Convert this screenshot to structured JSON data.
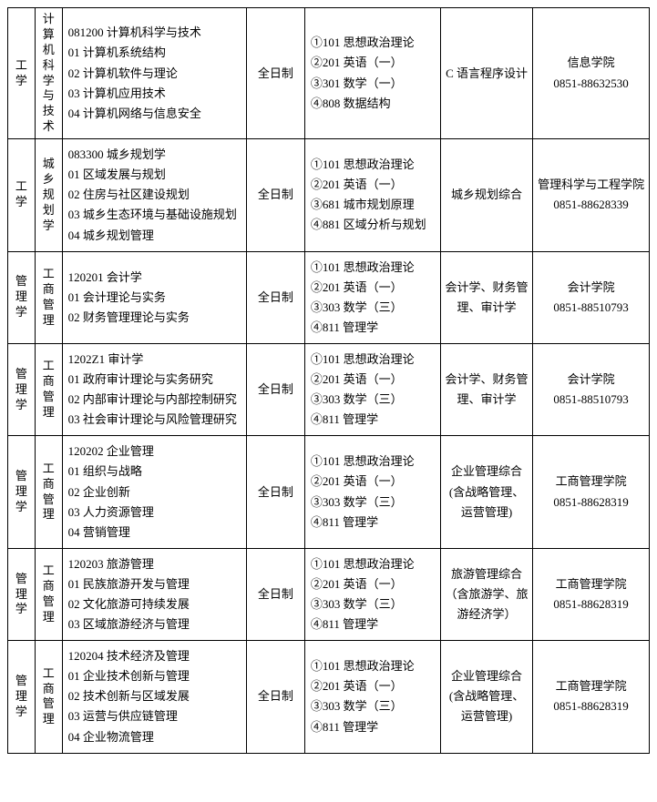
{
  "rows": [
    {
      "discipline": "工学",
      "category": "计算机科学与技术",
      "majors": "081200 计算机科学与技术\n01 计算机系统结构\n02 计算机软件与理论\n03 计算机应用技术\n04 计算机网络与信息安全",
      "mode": "全日制",
      "exams": "①101 思想政治理论\n②201 英语（一）\n③301 数学（一）\n④808 数据结构",
      "subject": "C 语言程序设计",
      "contact": "信息学院\n0851-88632530"
    },
    {
      "discipline": "工学",
      "category": "城乡规划学",
      "majors": "083300 城乡规划学\n01 区域发展与规划\n02 住房与社区建设规划\n03 城乡生态环境与基础设施规划\n04 城乡规划管理",
      "mode": "全日制",
      "exams": "①101 思想政治理论\n②201 英语（一）\n③681 城市规划原理\n④881 区域分析与规划",
      "subject": "城乡规划综合",
      "contact": "管理科学与工程学院\n0851-88628339"
    },
    {
      "discipline": "管理学",
      "category": "工商管理",
      "majors": "120201 会计学\n01 会计理论与实务\n02 财务管理理论与实务",
      "mode": "全日制",
      "exams": "①101 思想政治理论\n②201 英语（一）\n③303 数学（三）\n④811 管理学",
      "subject": "会计学、财务管理、审计学",
      "contact": "会计学院\n0851-88510793"
    },
    {
      "discipline": "管理学",
      "category": "工商管理",
      "majors": "1202Z1 审计学\n01 政府审计理论与实务研究\n02 内部审计理论与内部控制研究\n03 社会审计理论与风险管理研究",
      "mode": "全日制",
      "exams": "①101 思想政治理论\n②201 英语（一）\n③303 数学（三）\n④811 管理学",
      "subject": "会计学、财务管理、审计学",
      "contact": "会计学院\n0851-88510793"
    },
    {
      "discipline": "管理学",
      "category": "工商管理",
      "majors": "120202 企业管理\n01 组织与战略\n02 企业创新\n03 人力资源管理\n04 营销管理",
      "mode": "全日制",
      "exams": "①101 思想政治理论\n②201 英语（一）\n③303 数学（三）\n④811 管理学",
      "subject": "企业管理综合(含战略管理、运营管理)",
      "contact": "工商管理学院\n0851-88628319"
    },
    {
      "discipline": "管理学",
      "category": "工商管理",
      "majors": "120203 旅游管理\n01 民族旅游开发与管理\n02 文化旅游可持续发展\n03 区域旅游经济与管理",
      "mode": "全日制",
      "exams": "①101 思想政治理论\n②201 英语（一）\n③303 数学（三）\n④811 管理学",
      "subject": "旅游管理综合\n（含旅游学、旅游经济学）",
      "contact": "工商管理学院\n0851-88628319"
    },
    {
      "discipline": "管理学",
      "category": "工商管理",
      "majors": "120204 技术经济及管理\n01 企业技术创新与管理\n02 技术创新与区域发展\n03 运营与供应链管理\n04 企业物流管理",
      "mode": "全日制",
      "exams": "①101 思想政治理论\n②201 英语（一）\n③303 数学（三）\n④811 管理学",
      "subject": "企业管理综合(含战略管理、运营管理)",
      "contact": "工商管理学院\n0851-88628319"
    }
  ]
}
